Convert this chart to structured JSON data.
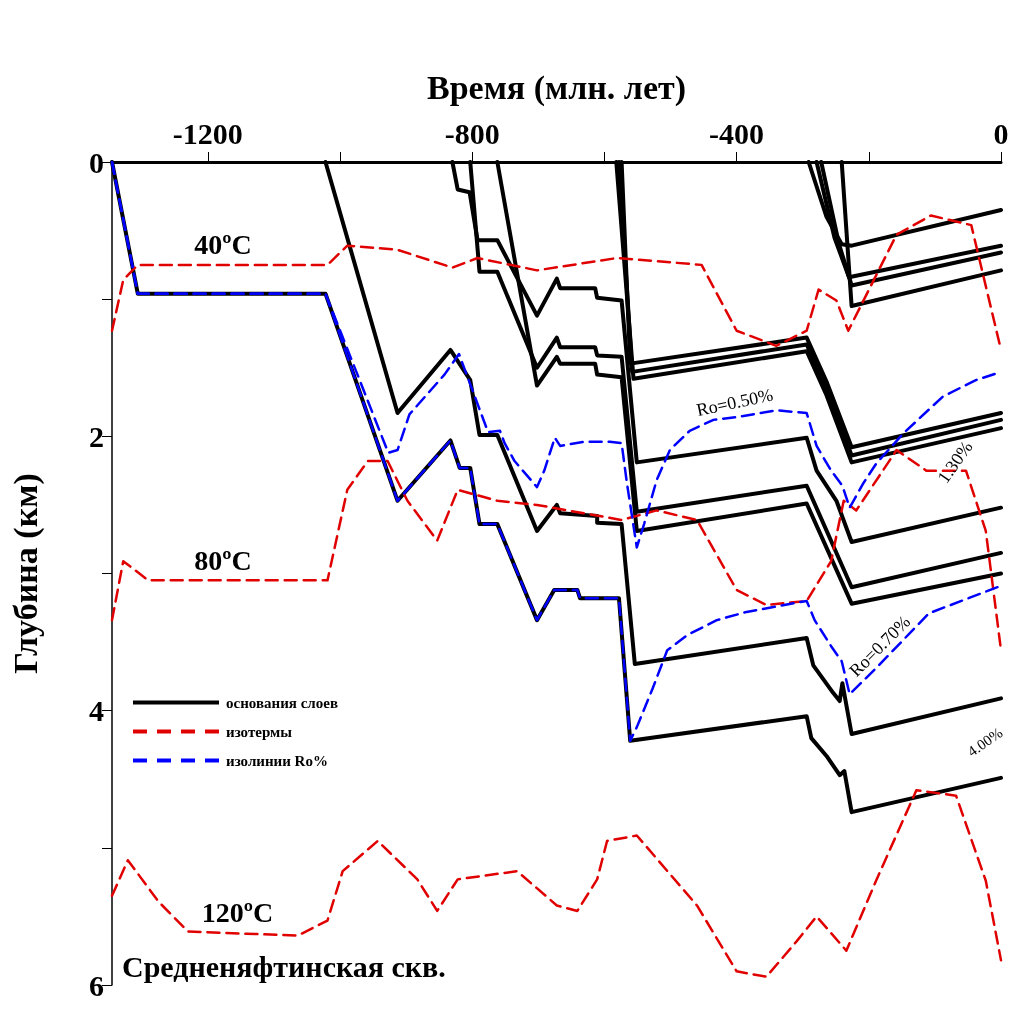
{
  "chart_data": {
    "type": "line",
    "xlabel": "Время (млн. лет)",
    "ylabel": "Глубина (км)",
    "xlim": [
      -1345,
      0
    ],
    "ylim": [
      6,
      0
    ],
    "xticks": [
      -1200,
      {
        "value": -1000,
        "label": null
      },
      -800,
      {
        "value": -600,
        "label": null
      },
      -400,
      {
        "value": -200,
        "label": null
      },
      0
    ],
    "yticks": [
      0,
      {
        "value": 1,
        "label": null
      },
      2,
      {
        "value": 3,
        "label": null
      },
      4,
      {
        "value": 5,
        "label": null
      },
      6
    ],
    "grid": false,
    "legend": "left",
    "marker": "none",
    "annotations": [
      {
        "text": "40ºC",
        "x": -1177,
        "y": 0.75
      },
      {
        "text": "80ºC",
        "x": -1177,
        "y": 3.05
      },
      {
        "text": "120ºC",
        "x": -1155,
        "y": 5.62
      },
      {
        "text": "Ro=0.50%",
        "x": -400,
        "y": 1.86
      },
      "1.30%",
      {
        "text": "Ro=0.70%",
        "x": -174,
        "y": 3.62
      },
      "4.00%",
      "Средненяфтинская скв."
    ],
    "series": [
      {
        "name": "основания слоев",
        "color": "#000000",
        "line_style": "solid",
        "x": [
          -1345,
          -1306,
          -1022,
          -913,
          -833,
          -819,
          -803,
          -789,
          -762,
          -702,
          -676,
          -641,
          -637,
          -578,
          -561,
          -294,
          -287,
          -264,
          -244,
          -237,
          -226,
          0
        ],
        "values": [
          0,
          0.96,
          0.96,
          2.47,
          2.03,
          2.23,
          2.23,
          2.64,
          2.64,
          3.34,
          3.12,
          3.12,
          3.18,
          3.18,
          4.22,
          4.04,
          4.2,
          4.33,
          4.47,
          4.44,
          4.74,
          4.49
        ]
      },
      {
        "color": "#000000",
        "line_style": "solid",
        "x": [
          -1022,
          -913,
          -833,
          -803,
          -789,
          -762,
          -702,
          -672,
          -667,
          -611,
          -611,
          -574,
          -554,
          -294,
          -284,
          -254,
          -244,
          -240,
          -226,
          0
        ],
        "values": [
          0,
          1.83,
          1.37,
          1.59,
          1.99,
          1.99,
          2.69,
          2.5,
          2.56,
          2.58,
          2.63,
          2.64,
          3.66,
          3.47,
          3.67,
          3.87,
          3.93,
          3.8,
          4.17,
          3.91
        ]
      },
      {
        "color": "#000000",
        "line_style": "solid",
        "x": [
          -830,
          -822,
          -804,
          -792,
          -762,
          -702,
          -672,
          -667,
          -614,
          -611,
          -574,
          -551,
          -294,
          -279,
          -249,
          -226,
          0
        ],
        "values": [
          0,
          0.2,
          0.22,
          0.57,
          0.57,
          1.12,
          0.85,
          0.92,
          0.92,
          0.99,
          1.01,
          2.19,
          2.01,
          2.25,
          2.47,
          2.77,
          2.52
        ]
      },
      {
        "color": "#000000",
        "line_style": "solid",
        "x": [
          -803,
          -789,
          -762,
          -702,
          -672,
          -667,
          -614,
          -611,
          -574,
          -551,
          -294,
          -226,
          0
        ],
        "values": [
          0,
          0.8,
          0.8,
          1.5,
          1.28,
          1.35,
          1.35,
          1.41,
          1.42,
          2.55,
          2.36,
          3.1,
          2.85
        ]
      },
      {
        "color": "#000000",
        "line_style": "solid",
        "x": [
          -762,
          -702,
          -672,
          -667,
          -614,
          -611,
          -574,
          -551,
          -294,
          -226,
          0
        ],
        "values": [
          0,
          1.63,
          1.42,
          1.47,
          1.47,
          1.55,
          1.57,
          2.69,
          2.49,
          3.22,
          3.0
        ]
      },
      {
        "color": "#000000",
        "line_style": "solid",
        "x": [
          -574,
          -561,
          -294,
          -264,
          -226,
          0
        ],
        "values": [
          0,
          1.47,
          1.28,
          1.6,
          2.08,
          1.83
        ]
      },
      {
        "color": "#000000",
        "line_style": "solid",
        "x": [
          -578,
          -558,
          -294,
          -264,
          -226,
          0
        ],
        "values": [
          0,
          1.53,
          1.33,
          1.65,
          2.14,
          1.88
        ]
      },
      {
        "color": "#000000",
        "line_style": "solid",
        "x": [
          -582,
          -556,
          -294,
          -264,
          -226,
          0
        ],
        "values": [
          0,
          1.58,
          1.38,
          1.7,
          2.19,
          1.94
        ]
      },
      {
        "color": "#000000",
        "line_style": "solid",
        "x": [
          -291,
          -264,
          -241,
          -226,
          0
        ],
        "values": [
          0,
          0.4,
          0.6,
          0.61,
          0.35
        ]
      },
      {
        "color": "#000000",
        "line_style": "solid",
        "x": [
          -279,
          -252,
          -230,
          0
        ],
        "values": [
          0,
          0.55,
          0.84,
          0.61
        ]
      },
      {
        "color": "#000000",
        "line_style": "solid",
        "x": [
          -272,
          -245,
          -226,
          0
        ],
        "values": [
          0,
          0.6,
          0.9,
          0.66
        ]
      },
      {
        "color": "#000000",
        "line_style": "solid",
        "x": [
          -241,
          -226,
          0
        ],
        "values": [
          0,
          1.05,
          0.79
        ]
      },
      {
        "name": "изотермы",
        "color": "#e00000",
        "line_style": "dashed",
        "x": [
          -1345,
          -1328,
          -1306,
          -1019,
          -989,
          -913,
          -830,
          -792,
          -702,
          -581,
          -453,
          -400,
          -340,
          -294,
          -276,
          -249,
          -231,
          -158,
          -106,
          -45,
          0
        ],
        "values": [
          1.23,
          0.86,
          0.75,
          0.75,
          0.61,
          0.64,
          0.77,
          0.7,
          0.79,
          0.7,
          0.75,
          1.23,
          1.34,
          1.23,
          0.93,
          1.01,
          1.23,
          0.53,
          0.39,
          0.46,
          1.37
        ]
      },
      {
        "color": "#e00000",
        "line_style": "dashed",
        "x": [
          -1345,
          -1328,
          -1290,
          -1019,
          -989,
          -958,
          -928,
          -898,
          -853,
          -822,
          -762,
          -702,
          -574,
          -521,
          -460,
          -400,
          -355,
          -294,
          -257,
          -238,
          -219,
          -158,
          -113,
          -53,
          -23,
          0
        ],
        "values": [
          3.34,
          2.91,
          3.05,
          3.05,
          2.39,
          2.18,
          2.18,
          2.47,
          2.76,
          2.39,
          2.47,
          2.5,
          2.61,
          2.54,
          2.61,
          3.12,
          3.23,
          3.2,
          2.91,
          2.47,
          2.54,
          2.1,
          2.25,
          2.25,
          2.69,
          3.56
        ]
      },
      {
        "color": "#e00000",
        "line_style": "dashed",
        "x": [
          -1345,
          -1321,
          -1275,
          -1230,
          -1064,
          -1019,
          -996,
          -943,
          -883,
          -853,
          -822,
          -732,
          -672,
          -641,
          -611,
          -596,
          -551,
          -460,
          -400,
          -355,
          -309,
          -279,
          -234,
          -189,
          -128,
          -68,
          -23,
          0
        ],
        "values": [
          5.35,
          5.09,
          5.39,
          5.61,
          5.64,
          5.53,
          5.17,
          4.95,
          5.23,
          5.46,
          5.23,
          5.17,
          5.42,
          5.46,
          5.23,
          4.95,
          4.91,
          5.42,
          5.9,
          5.94,
          5.68,
          5.5,
          5.75,
          5.24,
          4.58,
          4.62,
          5.24,
          5.82
        ]
      },
      {
        "name": "изолинии Ro%",
        "color": "#0000ff",
        "line_style": "dashed",
        "x": [
          -1345,
          -1306,
          -1022,
          -927,
          -913,
          -895,
          -842,
          -820,
          -776,
          -758,
          -751,
          -736,
          -702,
          -691,
          -675,
          -667,
          -631,
          -592,
          -574,
          -566,
          -551,
          -540,
          -521,
          -501,
          -471,
          -435,
          -400,
          -340,
          -294,
          -279,
          -257,
          -240,
          -229,
          -208,
          -189,
          -148,
          -88,
          -38,
          0
        ],
        "values": [
          0,
          0.96,
          0.96,
          2.12,
          2.1,
          1.84,
          1.55,
          1.4,
          1.97,
          1.96,
          2.05,
          2.18,
          2.37,
          2.25,
          2.01,
          2.07,
          2.04,
          2.04,
          2.05,
          2.34,
          2.81,
          2.64,
          2.32,
          2.1,
          1.96,
          1.88,
          1.86,
          1.81,
          1.83,
          2.07,
          2.25,
          2.36,
          2.52,
          2.34,
          2.2,
          1.98,
          1.71,
          1.59,
          1.53
        ]
      },
      {
        "color": "#0000ff",
        "line_style": "dashed",
        "x": [
          -1345,
          -1306,
          -1022,
          -913,
          -833,
          -819,
          -803,
          -789,
          -762,
          -702,
          -676,
          -641,
          -637,
          -578,
          -561,
          -551,
          -528,
          -505,
          -475,
          -430,
          -385,
          -294,
          -282,
          -257,
          -241,
          -229,
          -189,
          -109,
          0
        ],
        "values": [
          0,
          0.96,
          0.96,
          2.47,
          2.03,
          2.23,
          2.23,
          2.64,
          2.64,
          3.34,
          3.12,
          3.12,
          3.18,
          3.18,
          4.22,
          4.12,
          3.85,
          3.56,
          3.45,
          3.34,
          3.28,
          3.2,
          3.34,
          3.53,
          3.64,
          3.88,
          3.69,
          3.29,
          3.09
        ]
      }
    ]
  }
}
